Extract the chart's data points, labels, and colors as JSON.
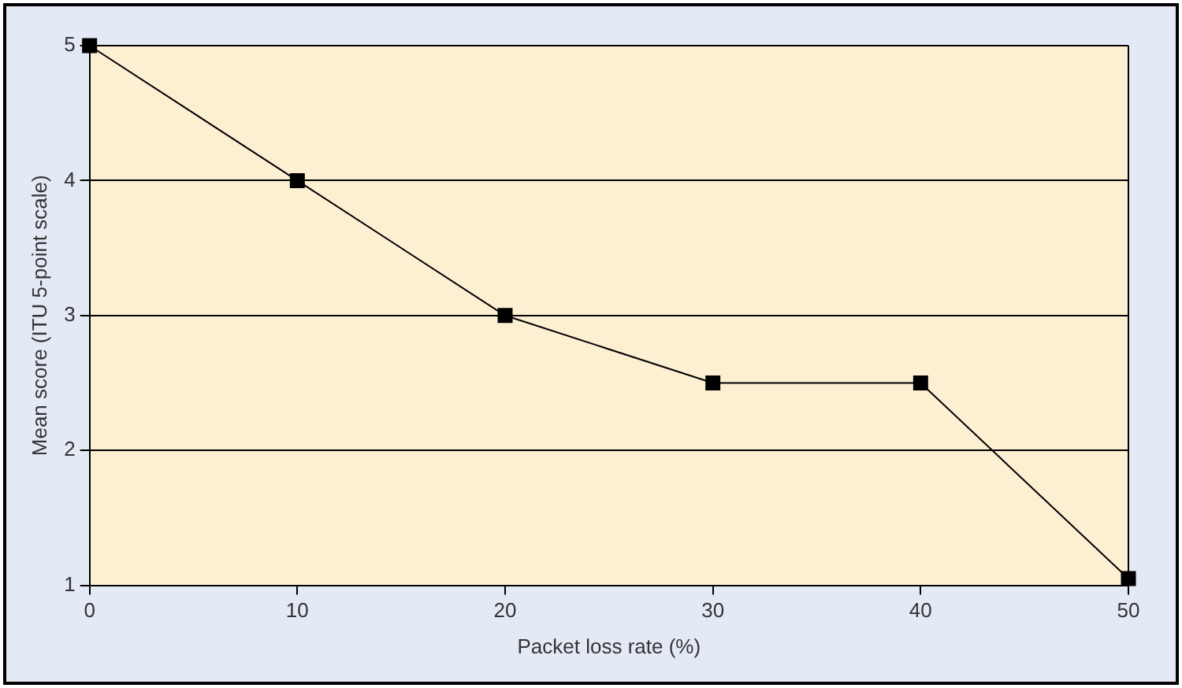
{
  "chart_data": {
    "type": "line",
    "xlabel": "Packet loss rate (%)",
    "ylabel": "Mean score (ITU 5-point scale)",
    "x": [
      0,
      10,
      20,
      30,
      40,
      50
    ],
    "series": [
      {
        "color": "#000000",
        "values": [
          5,
          4,
          3,
          2.5,
          2.5,
          1.05
        ]
      }
    ],
    "xlim": [
      0,
      50
    ],
    "xticks": [
      0,
      10,
      20,
      30,
      40,
      50
    ],
    "ylim": [
      1,
      5
    ],
    "yticks": [
      1,
      2,
      3,
      4,
      5
    ],
    "grid": "y",
    "legend": false,
    "marker": "square",
    "line_style": "solid"
  }
}
